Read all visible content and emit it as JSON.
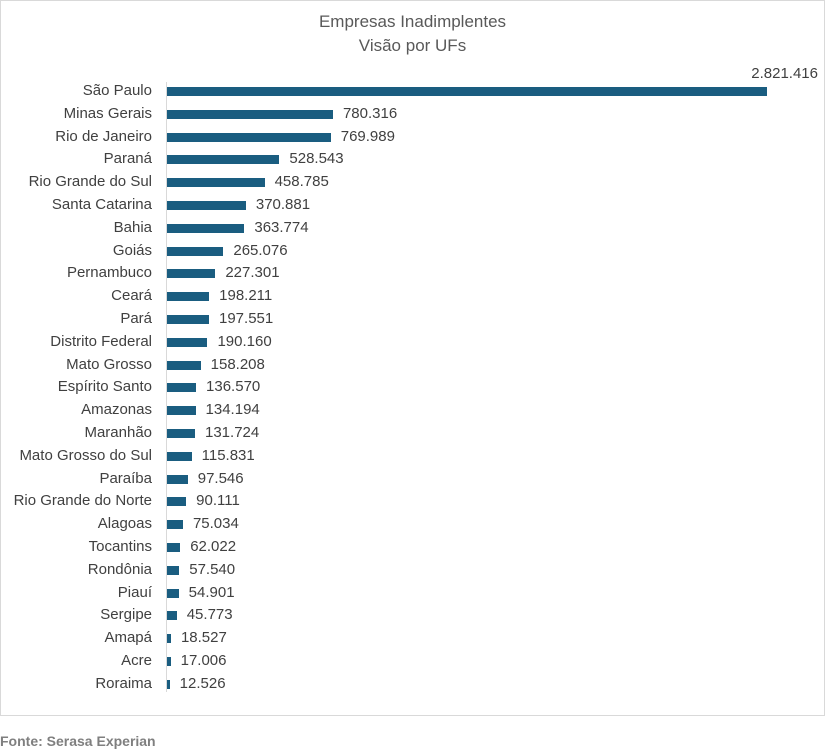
{
  "chart_data": {
    "type": "bar",
    "orientation": "horizontal",
    "title": "Empresas Inadimplentes",
    "subtitle": "Visão por UFs",
    "xlabel": "",
    "ylabel": "",
    "grid": false,
    "bar_color": "#1a5d80",
    "categories": [
      "São Paulo",
      "Minas Gerais",
      "Rio de Janeiro",
      "Paraná",
      "Rio Grande do Sul",
      "Santa Catarina",
      "Bahia",
      "Goiás",
      "Pernambuco",
      "Ceará",
      "Pará",
      "Distrito Federal",
      "Mato Grosso",
      "Espírito Santo",
      "Amazonas",
      "Maranhão",
      "Mato Grosso do Sul",
      "Paraíba",
      "Rio Grande do Norte",
      "Alagoas",
      "Tocantins",
      "Rondônia",
      "Piauí",
      "Sergipe",
      "Amapá",
      "Acre",
      "Roraima"
    ],
    "values": [
      2821416,
      780316,
      769989,
      528543,
      458785,
      370881,
      363774,
      265076,
      227301,
      198211,
      197551,
      190160,
      158208,
      136570,
      134194,
      131724,
      115831,
      97546,
      90111,
      75034,
      62022,
      57540,
      54901,
      45773,
      18527,
      17006,
      12526
    ],
    "value_labels": [
      "2.821.416",
      "780.316",
      "769.989",
      "528.543",
      "458.785",
      "370.881",
      "363.774",
      "265.076",
      "227.301",
      "198.211",
      "197.551",
      "190.160",
      "158.208",
      "136.570",
      "134.194",
      "131.724",
      "115.831",
      "97.546",
      "90.111",
      "75.034",
      "62.022",
      "57.540",
      "54.901",
      "45.773",
      "18.527",
      "17.006",
      "12.526"
    ],
    "xlim": [
      0,
      2821416
    ]
  },
  "source": "Fonte: Serasa Experian"
}
